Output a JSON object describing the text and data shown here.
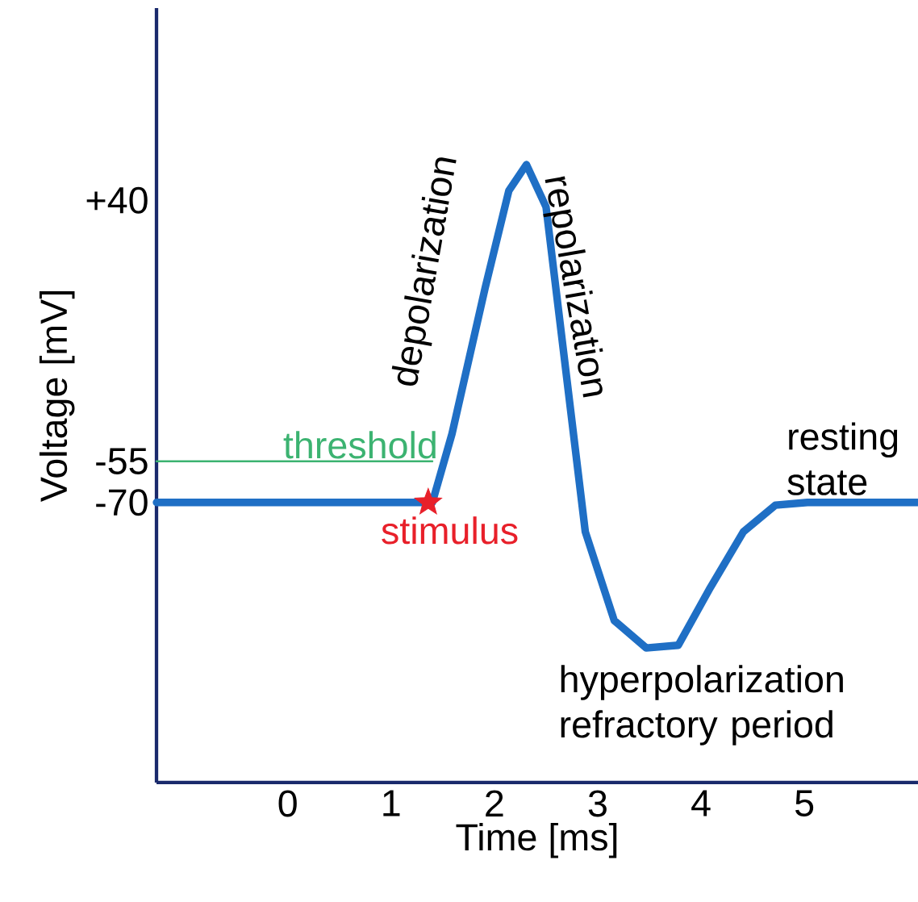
{
  "chart_data": {
    "type": "line",
    "xlabel": "Time [ms]",
    "ylabel": "Voltage [mV]",
    "xlim": [
      -1.27,
      6.1
    ],
    "ylim": [
      -172,
      110
    ],
    "xticks": [
      0,
      1,
      2,
      3,
      4,
      5
    ],
    "yticks": [
      {
        "value": 40,
        "label": "+40"
      },
      -55,
      -70
    ],
    "series": [
      {
        "color": "#1f6fc5",
        "x": [
          -1.27,
          1.4,
          1.59,
          1.91,
          2.14,
          2.31,
          2.5,
          2.69,
          2.88,
          3.16,
          3.47,
          3.78,
          4.09,
          4.41,
          4.72,
          5.03,
          6.1
        ],
        "values": [
          -70,
          -70,
          -45,
          8,
          43.5,
          53,
          37.6,
          -21.5,
          -80.7,
          -113,
          -123,
          -122,
          -101,
          -80.7,
          -71,
          -70,
          -70
        ]
      },
      {
        "name": "threshold",
        "color": "#3cb371",
        "x": [
          -1.27,
          1.4
        ],
        "values": [
          -55,
          -55
        ]
      },
      {
        "type": "scatter",
        "name": "stimulus",
        "color": "#e8202a",
        "marker": "star",
        "x": [
          1.36
        ],
        "values": [
          -70
        ]
      }
    ],
    "annotations": [
      "depolarization",
      "repolarization",
      "resting state",
      "hyperpolarization refractory period"
    ]
  }
}
